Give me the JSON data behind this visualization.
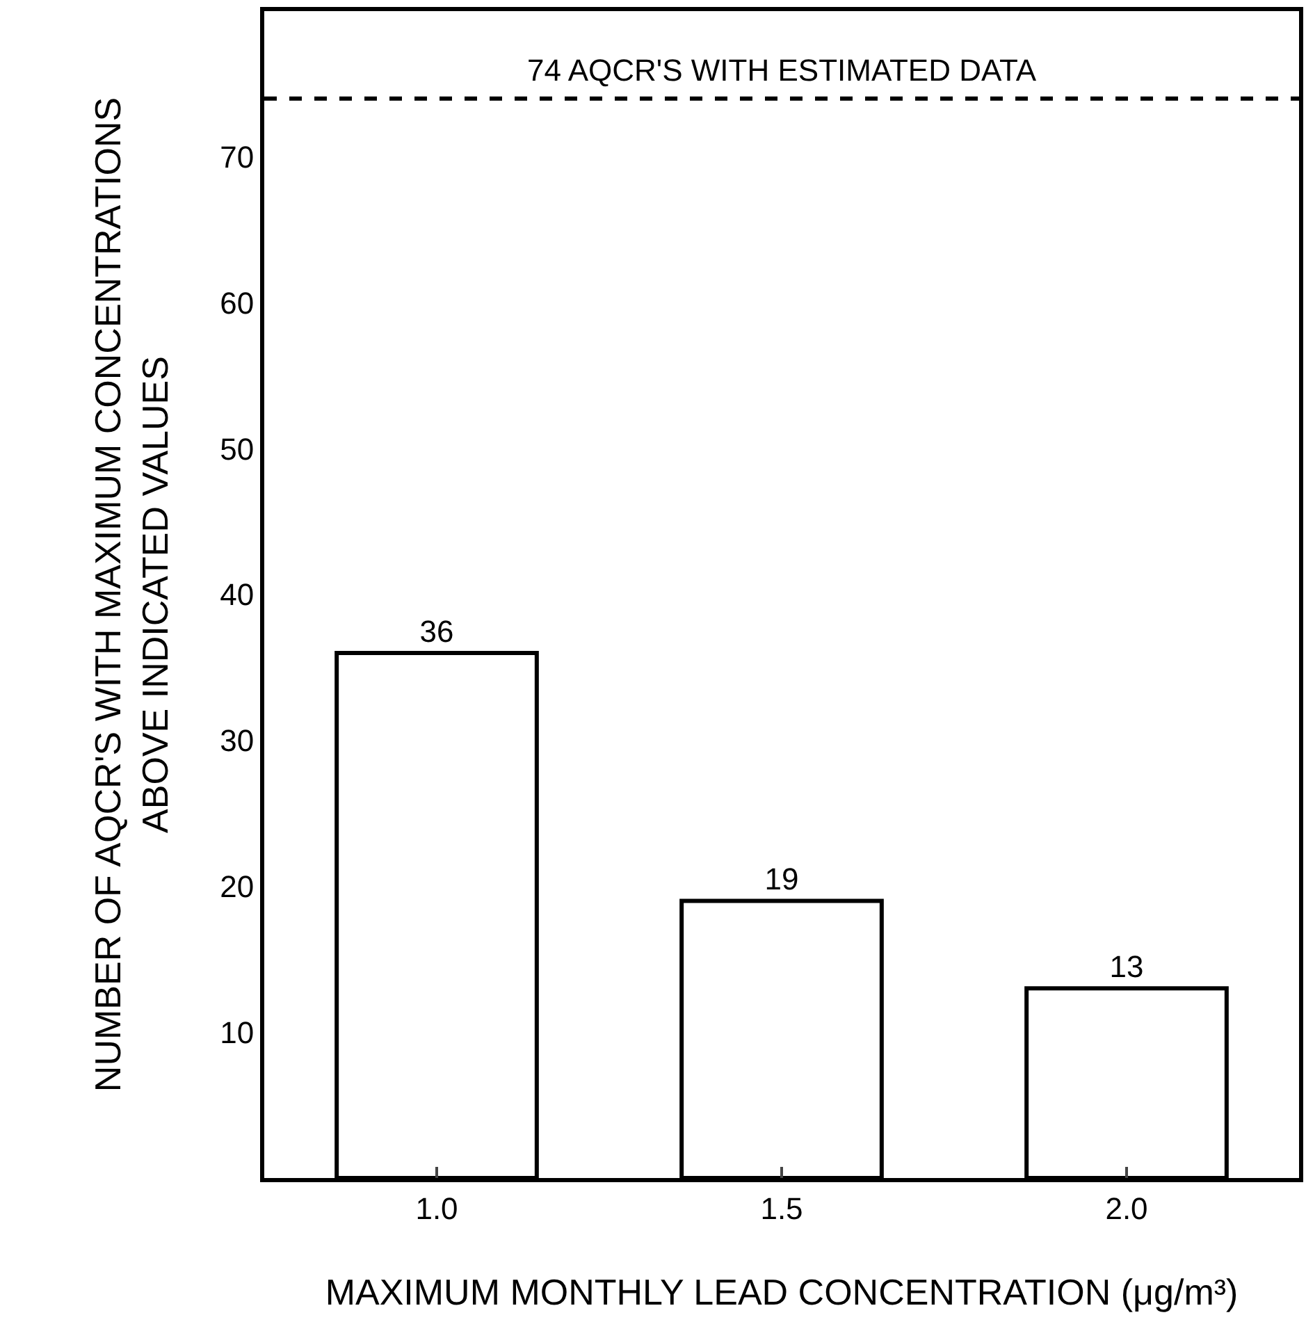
{
  "chart_data": {
    "type": "bar",
    "xlabel": "MAXIMUM MONTHLY LEAD CONCENTRATION (μg/m³)",
    "ylabel": "NUMBER OF AQCR'S WITH MAXIMUM CONCENTRATIONS\nABOVE INDICATED VALUES",
    "categories": [
      "1.0",
      "1.5",
      "2.0"
    ],
    "values": [
      36,
      19,
      13
    ],
    "color": "#ffffff",
    "data_labels": true,
    "ylim": [
      0,
      80
    ],
    "yticks": [
      10,
      20,
      30,
      40,
      50,
      60,
      70
    ],
    "ref_lines": [
      {
        "axis": "y",
        "value": 74,
        "label": "74 AQCR'S WITH ESTIMATED DATA",
        "line_style": "dashed",
        "color": "#000000"
      }
    ]
  }
}
